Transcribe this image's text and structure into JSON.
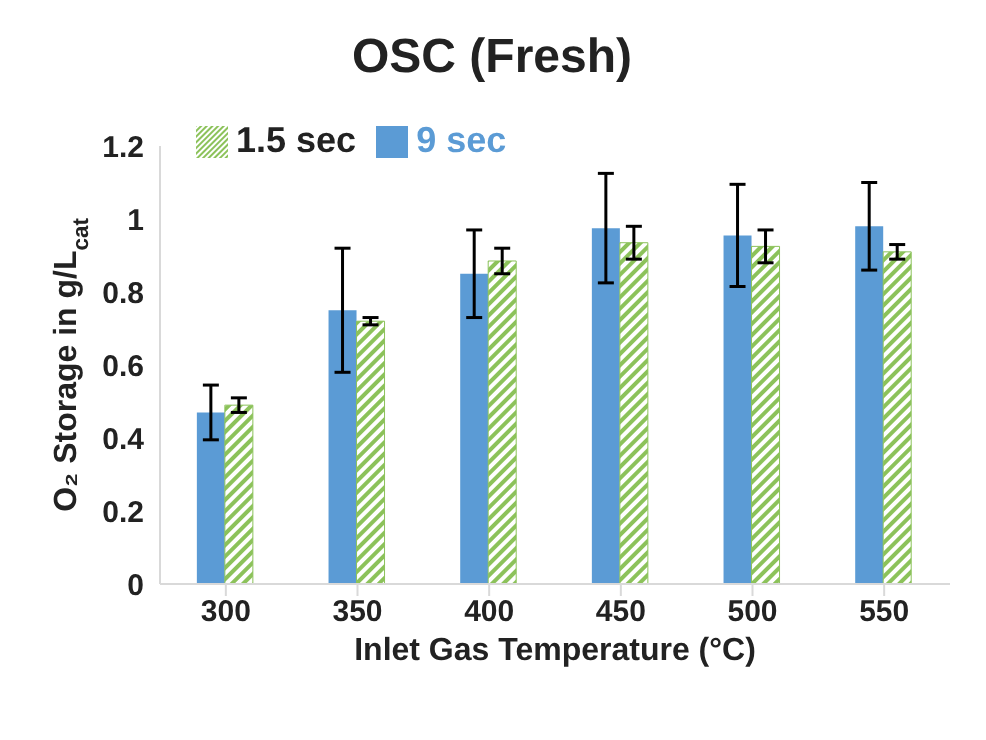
{
  "chart_data": {
    "type": "bar",
    "title": "OSC (Fresh)",
    "xlabel": "Inlet Gas Temperature (°C)",
    "ylabel": "O₂ Storage in g/L$_{cat}$",
    "categories": [
      "300",
      "350",
      "400",
      "450",
      "500",
      "550"
    ],
    "series": [
      {
        "name": "9 sec",
        "color": "#5b9bd5",
        "values": [
          0.47,
          0.75,
          0.85,
          0.975,
          0.955,
          0.98
        ],
        "errors": [
          0.075,
          0.17,
          0.12,
          0.15,
          0.14,
          0.12
        ]
      },
      {
        "name": "1.5 sec",
        "color": "#8cc25a",
        "values": [
          0.49,
          0.72,
          0.885,
          0.935,
          0.925,
          0.91
        ],
        "errors": [
          0.02,
          0.01,
          0.035,
          0.045,
          0.045,
          0.02
        ]
      }
    ],
    "ylim": [
      0,
      1.2
    ],
    "yticks": [
      0,
      0.2,
      0.4,
      0.6,
      0.8,
      1,
      1.2
    ],
    "grid": false,
    "legend": "top left"
  }
}
